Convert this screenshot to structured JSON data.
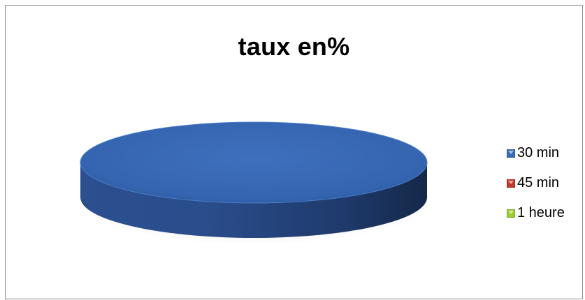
{
  "chart_data": {
    "type": "pie",
    "title": "taux en%",
    "categories": [
      "30 min",
      "45 min",
      "1 heure"
    ],
    "values": [
      100,
      0,
      0
    ],
    "colors": [
      "#3a6bb8",
      "#c0392b",
      "#9acd32"
    ],
    "legend_position": "right",
    "style": "3d"
  }
}
